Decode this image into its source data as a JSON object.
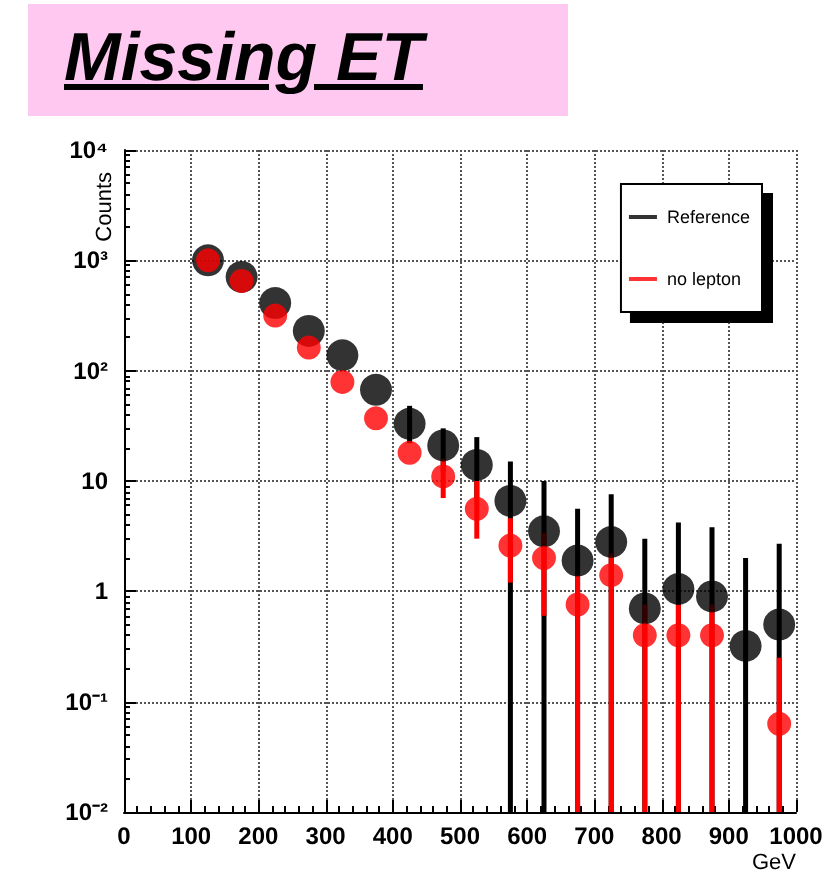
{
  "chart_data": {
    "type": "scatter",
    "title": "Missing ET",
    "xlabel": "GeV",
    "ylabel": "Counts",
    "x": [
      125,
      175,
      225,
      275,
      325,
      375,
      425,
      475,
      525,
      575,
      625,
      675,
      725,
      775,
      825,
      875,
      925,
      975
    ],
    "series": [
      {
        "name": "Reference",
        "color": "#000000",
        "values": [
          1000,
          708,
          410,
          229,
          138,
          67,
          33,
          21,
          14,
          6.6,
          3.5,
          1.9,
          2.8,
          0.7,
          1.05,
          0.9,
          0.32,
          0.5
        ],
        "errors": [
          null,
          null,
          null,
          null,
          null,
          null,
          [
            22,
            48
          ],
          [
            12,
            30
          ],
          [
            7,
            25
          ],
          [
            0.01,
            15
          ],
          [
            0.01,
            10
          ],
          [
            0.01,
            5.6
          ],
          [
            0.01,
            7.6
          ],
          [
            0.01,
            3
          ],
          [
            0.01,
            4.2
          ],
          [
            0.01,
            3.8
          ],
          [
            0.01,
            2
          ],
          [
            0.01,
            2.7
          ]
        ]
      },
      {
        "name": "no lepton",
        "color": "#ff0000",
        "values": [
          1000,
          650,
          316,
          162,
          79,
          37,
          18,
          11,
          5.6,
          2.6,
          2.0,
          0.76,
          1.4,
          0.4,
          0.4,
          0.4,
          null,
          0.063
        ],
        "errors": [
          null,
          null,
          null,
          null,
          null,
          null,
          null,
          [
            7,
            16
          ],
          [
            3,
            10
          ],
          [
            1.2,
            4.6
          ],
          [
            0.6,
            3.4
          ],
          [
            0.01,
            1.4
          ],
          [
            0.01,
            2.2
          ],
          [
            0.01,
            0.76
          ],
          [
            0.01,
            0.76
          ],
          [
            0.01,
            0.76
          ],
          null,
          [
            0.01,
            0.25
          ]
        ]
      }
    ],
    "xlim": [
      0,
      1000
    ],
    "xticks": [
      0,
      100,
      200,
      300,
      400,
      500,
      600,
      700,
      800,
      900,
      1000
    ],
    "ylim": [
      0.01,
      10000
    ],
    "yticks": [
      {
        "value": 0.01,
        "label": "10⁻²"
      },
      {
        "value": 0.1,
        "label": "10⁻¹"
      },
      1,
      10,
      {
        "value": 100,
        "label": "10²"
      },
      {
        "value": 1000,
        "label": "10³"
      },
      {
        "value": 10000,
        "label": "10⁴"
      }
    ],
    "log": true,
    "grid": true,
    "legend": "top right",
    "marker": "circle"
  }
}
